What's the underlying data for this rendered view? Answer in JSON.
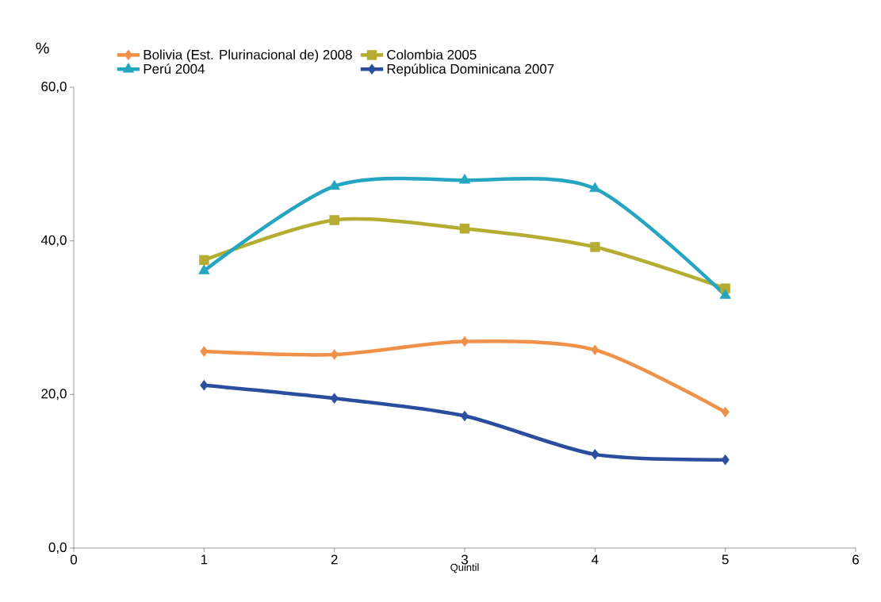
{
  "chart_data": {
    "type": "line",
    "xlabel": "Quintil",
    "ylabel": "%",
    "x": [
      1,
      2,
      3,
      4,
      5
    ],
    "xlim": [
      0,
      6
    ],
    "xticks": [
      0,
      1,
      2,
      3,
      4,
      5,
      6
    ],
    "ylim": [
      0,
      60
    ],
    "yticks": [
      {
        "value": 0,
        "label": "0,0"
      },
      {
        "value": 20,
        "label": "20,0"
      },
      {
        "value": 40,
        "label": "40,0"
      },
      {
        "value": 60,
        "label": "60,0"
      }
    ],
    "grid": false,
    "legend": "top",
    "line_style": "solid",
    "series": [
      {
        "name": "Bolivia (Est. Plurinacional de) 2008",
        "color": "#f0914a",
        "marker": "diamond",
        "values": [
          25.6,
          25.2,
          26.9,
          25.8,
          17.7
        ]
      },
      {
        "name": "Colombia 2005",
        "color": "#b5ad32",
        "marker": "square",
        "values": [
          37.5,
          42.7,
          41.6,
          39.2,
          33.8
        ]
      },
      {
        "name": "Perú 2004",
        "color": "#26a5c0",
        "marker": "triangle",
        "values": [
          36.1,
          47.1,
          47.9,
          46.8,
          32.9
        ]
      },
      {
        "name": "República Dominicana 2007",
        "color": "#2a4d9e",
        "marker": "diamond",
        "values": [
          21.2,
          19.5,
          17.2,
          12.2,
          11.5
        ]
      }
    ]
  }
}
